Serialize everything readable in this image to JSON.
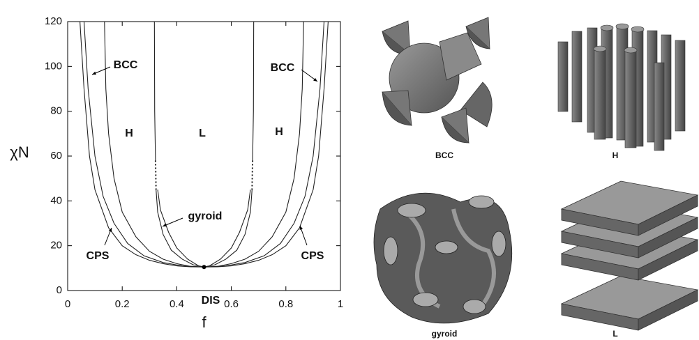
{
  "chart_data": {
    "type": "line",
    "x_label": "f",
    "y_label": "χN",
    "xlim": [
      0,
      1
    ],
    "ylim": [
      0,
      120
    ],
    "xticks": [
      0,
      0.2,
      0.4,
      0.6,
      0.8,
      1
    ],
    "yticks": [
      0,
      20,
      40,
      60,
      80,
      100,
      120
    ],
    "color": "#222",
    "series": [
      {
        "x": [
          0.045,
          0.06,
          0.08,
          0.1,
          0.15,
          0.2,
          0.25,
          0.3,
          0.35,
          0.4,
          0.45,
          0.5,
          0.55,
          0.6,
          0.65,
          0.7,
          0.75,
          0.8,
          0.85,
          0.9,
          0.92,
          0.94,
          0.955
        ],
        "values": [
          120,
          90,
          60,
          45,
          28,
          20,
          16,
          13.5,
          12,
          11,
          10.6,
          10.5,
          10.6,
          11,
          12,
          13.5,
          16,
          20,
          28,
          45,
          60,
          90,
          120
        ]
      },
      {
        "x": [
          0.06,
          0.075,
          0.1,
          0.13,
          0.17,
          0.22,
          0.28,
          0.35,
          0.42,
          0.5,
          0.58,
          0.65,
          0.72,
          0.78,
          0.83,
          0.87,
          0.9,
          0.925,
          0.94
        ],
        "values": [
          120,
          90,
          60,
          42,
          30,
          21,
          15.5,
          12.5,
          11,
          10.5,
          11,
          12.5,
          15.5,
          21,
          30,
          42,
          60,
          90,
          120
        ]
      },
      {
        "x": [
          0.135,
          0.14,
          0.15,
          0.17,
          0.2,
          0.25,
          0.3,
          0.35,
          0.4,
          0.45,
          0.5,
          0.55,
          0.6,
          0.65,
          0.7,
          0.75,
          0.8,
          0.83,
          0.85,
          0.86,
          0.865
        ],
        "values": [
          120,
          90,
          70,
          50,
          35,
          24,
          17.5,
          14,
          12,
          10.8,
          10.5,
          10.8,
          12,
          14,
          17.5,
          24,
          35,
          50,
          70,
          90,
          120
        ]
      },
      {
        "x": [
          0.318,
          0.319,
          0.322
        ],
        "values": [
          120,
          80,
          58
        ]
      },
      {
        "x": [
          0.322,
          0.324
        ],
        "values": [
          58,
          45
        ],
        "style": "dotted"
      },
      {
        "x": [
          0.682,
          0.681,
          0.678
        ],
        "values": [
          120,
          80,
          58
        ]
      },
      {
        "x": [
          0.678,
          0.676
        ],
        "values": [
          58,
          45
        ],
        "style": "dotted"
      },
      {
        "x": [
          0.324,
          0.33,
          0.35,
          0.38,
          0.42,
          0.46,
          0.5
        ],
        "values": [
          45,
          35,
          25,
          18,
          14,
          11.5,
          10.5
        ]
      },
      {
        "x": [
          0.33,
          0.34,
          0.37,
          0.4,
          0.44,
          0.48,
          0.5
        ],
        "values": [
          45,
          36,
          26,
          19,
          14,
          11,
          10.5
        ]
      },
      {
        "x": [
          0.676,
          0.67,
          0.65,
          0.62,
          0.58,
          0.54,
          0.5
        ],
        "values": [
          45,
          35,
          25,
          18,
          14,
          11.5,
          10.5
        ]
      },
      {
        "x": [
          0.67,
          0.66,
          0.63,
          0.6,
          0.56,
          0.52,
          0.5
        ],
        "values": [
          45,
          36,
          26,
          19,
          14,
          11,
          10.5
        ]
      }
    ],
    "critical_point": {
      "x": 0.5,
      "y": 10.5
    },
    "annotations": [
      "BCC",
      "BCC",
      "H",
      "L",
      "H",
      "gyroid",
      "CPS",
      "CPS",
      "DIS"
    ]
  },
  "structures": [
    "BCC",
    "H",
    "gyroid",
    "L"
  ]
}
